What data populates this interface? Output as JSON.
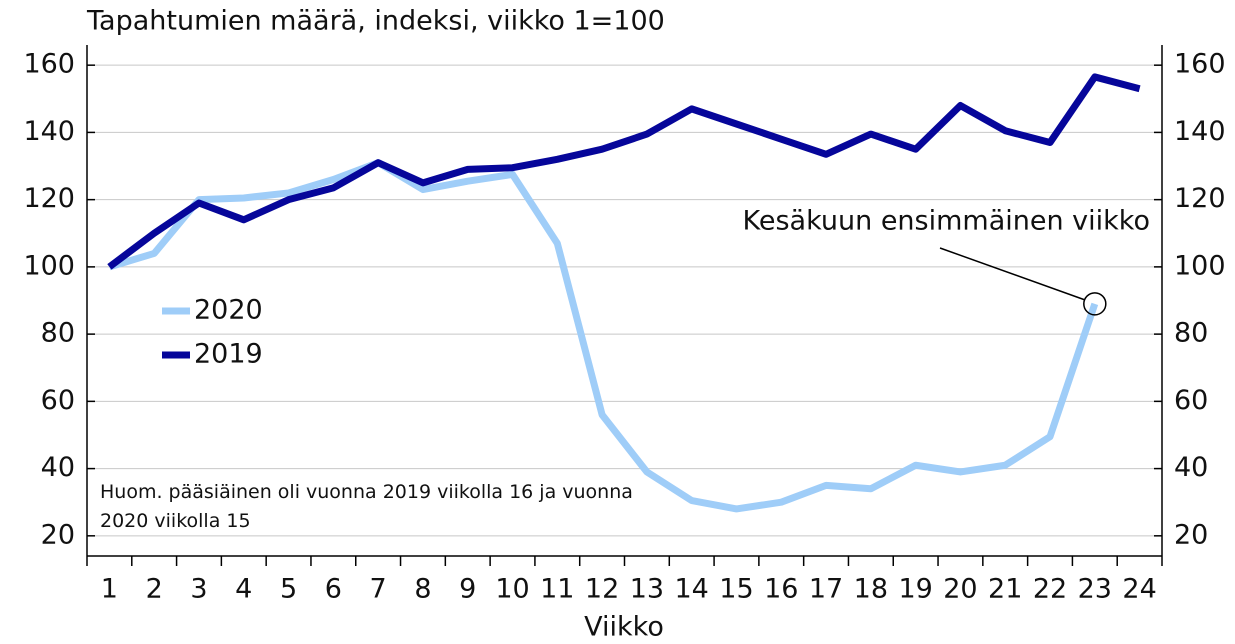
{
  "chart_data": {
    "type": "line",
    "title": "Tapahtumien määrä, indeksi, viikko 1=100",
    "x_label": "Viikko",
    "categories": [
      "1",
      "2",
      "3",
      "4",
      "5",
      "6",
      "7",
      "8",
      "9",
      "10",
      "11",
      "12",
      "13",
      "14",
      "15",
      "16",
      "17",
      "18",
      "19",
      "20",
      "21",
      "22",
      "23",
      "24"
    ],
    "series": [
      {
        "name": "2020",
        "color": "#9fcdf8",
        "values": [
          100,
          104,
          120,
          120.5,
          122,
          126,
          131,
          123,
          125.5,
          127.5,
          107,
          56,
          39,
          30.5,
          28,
          30,
          35,
          34,
          41,
          39,
          41,
          49.5,
          89,
          null
        ]
      },
      {
        "name": "2019",
        "color": "#06069a",
        "values": [
          100,
          110,
          119,
          114,
          120,
          123.5,
          131,
          125,
          129,
          129.5,
          132,
          135,
          139.5,
          147,
          142.5,
          138,
          133.5,
          139.5,
          135,
          148,
          140.5,
          137,
          156.5,
          153
        ]
      }
    ],
    "ylim": [
      14,
      166
    ],
    "yticks": [
      20,
      40,
      60,
      80,
      100,
      120,
      140,
      160
    ],
    "y2lim": [
      14,
      166
    ],
    "y2ticks": [
      20,
      40,
      60,
      80,
      100,
      120,
      140,
      160
    ],
    "grid": true,
    "legend": "left",
    "annotation": "Kesäkuun ensimmäinen viikko",
    "note": "Huom. pääsiäinen oli vuonna 2019 viikolla 16 ja vuonna 2020 viikolla 15"
  }
}
